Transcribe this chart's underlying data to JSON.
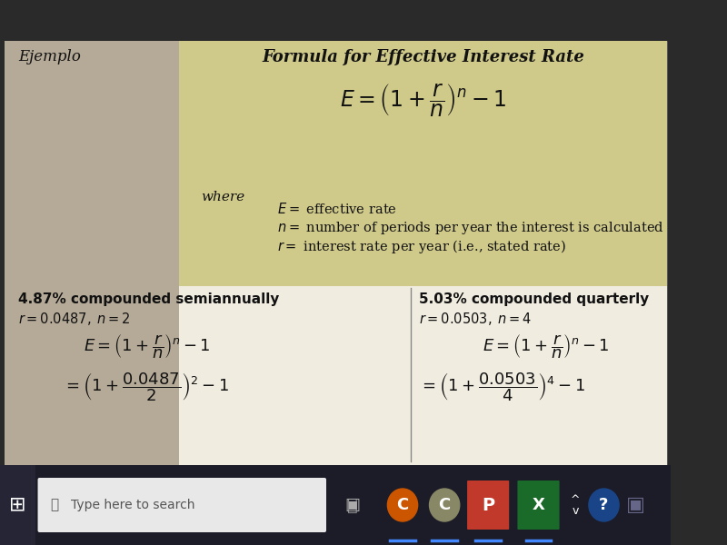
{
  "title": "Formula for Effective Interest Rate",
  "ejemplo_label": "Ejemplo",
  "main_formula": "$E=\\left(1+\\dfrac{r}{n}\\right)^{n}-1$",
  "where_label": "where",
  "def_E": "$E=$ effective rate",
  "def_n": "$n=$ number of periods per year the interest is calculated",
  "def_r": "$r=$ interest rate per year (i.e., stated rate)",
  "left_title": "4.87% compounded semiannually",
  "left_sub": "$r=0.0487,\\; n=2$",
  "left_formula1": "$E=\\left(1+\\dfrac{r}{n}\\right)^{n}-1$",
  "left_formula2": "$=\\left(1+\\dfrac{0.0487}{2}\\right)^{2}-1$",
  "right_title": "5.03% compounded quarterly",
  "right_sub": "$r=0.0503,\\; n=4$",
  "right_formula1": "$E=\\left(1+\\dfrac{r}{n}\\right)^{n}-1$",
  "right_formula2": "$=\\left(1+\\dfrac{0.0503}{4}\\right)^{4}-1$",
  "bg_golden": "#cfc98a",
  "bg_left_panel": "#b5aa98",
  "bg_bottom": "#e8e4da",
  "bg_outer": "#2a2a2a",
  "text_dark": "#111111",
  "taskbar_bg": "#1c1c28",
  "taskbar_search_bg": "#e8e8e8",
  "divider_color": "#888888",
  "outer_border": "#444444"
}
